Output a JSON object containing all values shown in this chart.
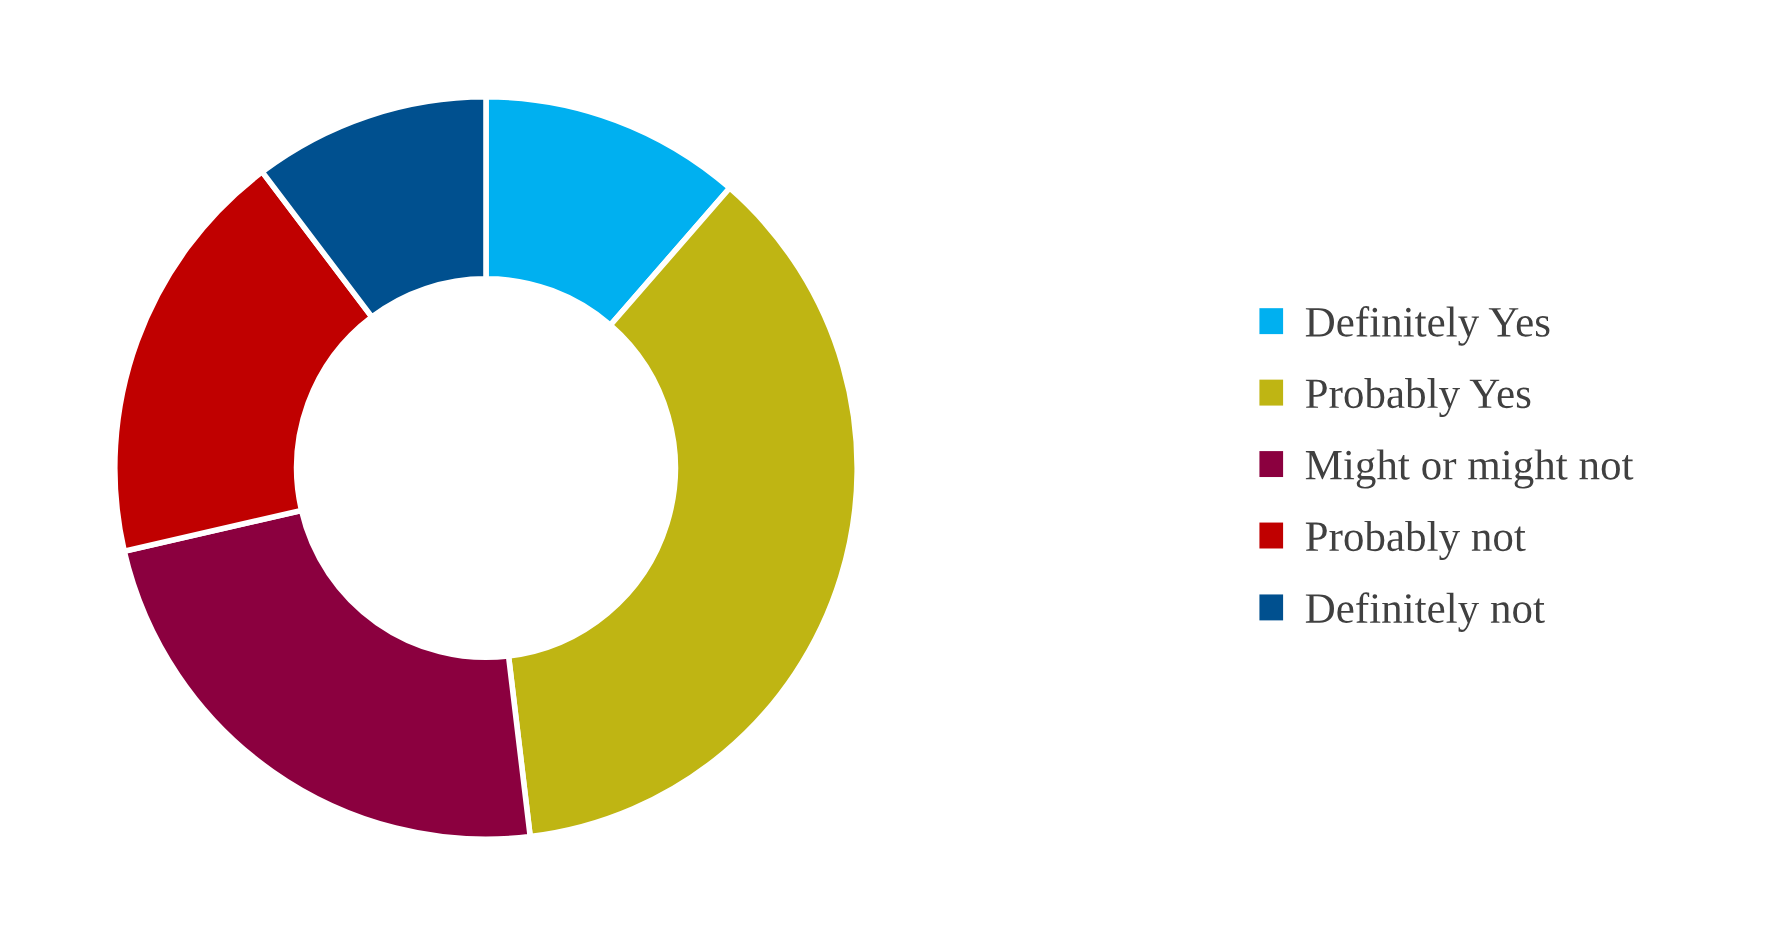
{
  "chart_data": {
    "type": "donut",
    "categories": [
      "Definitely Yes",
      "Probably Yes",
      "Might or might not",
      "Probably not",
      "Definitely not"
    ],
    "values": [
      11.4,
      36.7,
      23.3,
      18.3,
      10.3
    ],
    "colors": [
      "#00b0f0",
      "#bfb513",
      "#8b003f",
      "#c00000",
      "#00508f"
    ],
    "legend": "right"
  }
}
